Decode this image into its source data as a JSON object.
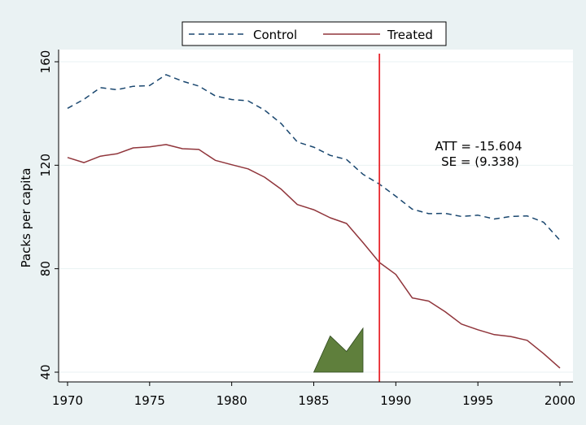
{
  "chart_data": {
    "type": "line",
    "xlabel": "",
    "ylabel": "Packs per capita",
    "xlim": [
      1970,
      2000
    ],
    "ylim": [
      40,
      160
    ],
    "x_ticks": [
      1970,
      1975,
      1980,
      1985,
      1990,
      1995,
      2000
    ],
    "y_ticks": [
      40,
      80,
      120,
      160
    ],
    "grid": "horizontal",
    "legend_position": "top-center",
    "years": [
      1970,
      1971,
      1972,
      1973,
      1974,
      1975,
      1976,
      1977,
      1978,
      1979,
      1980,
      1981,
      1982,
      1983,
      1984,
      1985,
      1986,
      1987,
      1988,
      1989,
      1990,
      1991,
      1992,
      1993,
      1994,
      1995,
      1996,
      1997,
      1998,
      1999,
      2000
    ],
    "series": [
      {
        "name": "Control",
        "style": "dashed",
        "color": "#1a476f",
        "values": [
          142.0,
          145.5,
          150.0,
          149.2,
          150.5,
          150.8,
          155.0,
          152.5,
          150.6,
          146.8,
          145.4,
          144.9,
          141.3,
          136.2,
          129.0,
          127.0,
          123.8,
          122.2,
          116.5,
          112.7,
          108.0,
          103.0,
          101.3,
          101.4,
          100.2,
          100.7,
          99.2,
          100.2,
          100.4,
          98.0,
          91.0
        ]
      },
      {
        "name": "Treated",
        "style": "solid",
        "color": "#90353b",
        "values": [
          123.0,
          121.0,
          123.5,
          124.4,
          126.7,
          127.1,
          128.0,
          126.4,
          126.1,
          121.9,
          120.2,
          118.6,
          115.4,
          110.8,
          104.8,
          102.8,
          99.7,
          97.5,
          90.1,
          82.4,
          77.8,
          68.7,
          67.5,
          63.4,
          58.6,
          56.4,
          54.5,
          53.8,
          52.3,
          47.2,
          41.6
        ]
      }
    ],
    "treatment_year": 1989,
    "treatment_line_color": "#e8262c",
    "annotation": {
      "att": "ATT = -15.604",
      "se": "SE = (9.338)",
      "anchor_x": 1991.0,
      "anchor_y": 119
    },
    "area": {
      "color": "#5f7f3c",
      "base": 40,
      "points": [
        [
          1985,
          40
        ],
        [
          1986,
          54
        ],
        [
          1987,
          48
        ],
        [
          1988,
          57
        ],
        [
          1988,
          40
        ]
      ]
    }
  }
}
